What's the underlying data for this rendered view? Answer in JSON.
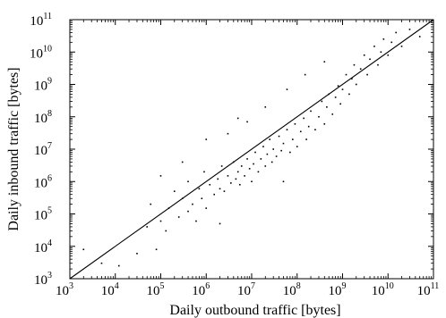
{
  "chart_data": {
    "type": "scatter",
    "title": "",
    "xlabel": "Daily outbound traffic [bytes]",
    "ylabel": "Daily inbound traffic [bytes]",
    "xscale": "log",
    "yscale": "log",
    "xlim": [
      1000,
      100000000000
    ],
    "ylim": [
      1000,
      100000000000
    ],
    "x_ticks": [
      {
        "base": "10",
        "exp": "3"
      },
      {
        "base": "10",
        "exp": "4"
      },
      {
        "base": "10",
        "exp": "5"
      },
      {
        "base": "10",
        "exp": "6"
      },
      {
        "base": "10",
        "exp": "7"
      },
      {
        "base": "10",
        "exp": "8"
      },
      {
        "base": "10",
        "exp": "9"
      },
      {
        "base": "10",
        "exp": "10"
      },
      {
        "base": "10",
        "exp": "11"
      }
    ],
    "y_ticks": [
      {
        "base": "10",
        "exp": "3"
      },
      {
        "base": "10",
        "exp": "4"
      },
      {
        "base": "10",
        "exp": "5"
      },
      {
        "base": "10",
        "exp": "6"
      },
      {
        "base": "10",
        "exp": "7"
      },
      {
        "base": "10",
        "exp": "8"
      },
      {
        "base": "10",
        "exp": "9"
      },
      {
        "base": "10",
        "exp": "10"
      },
      {
        "base": "10",
        "exp": "11"
      }
    ],
    "grid": false,
    "reference_line": {
      "type": "y=x",
      "from": 1000,
      "to": 100000000000
    },
    "series": [
      {
        "marker_color": "#000000",
        "points": [
          [
            2000,
            8000
          ],
          [
            5000,
            3000
          ],
          [
            12000,
            2500
          ],
          [
            30000,
            6000
          ],
          [
            50000,
            40000
          ],
          [
            60000,
            200000
          ],
          [
            80000,
            8000
          ],
          [
            100000,
            60000
          ],
          [
            130000,
            30000
          ],
          [
            150000,
            150000
          ],
          [
            200000,
            500000
          ],
          [
            250000,
            80000
          ],
          [
            300000,
            300000
          ],
          [
            400000,
            1000000
          ],
          [
            400000,
            120000
          ],
          [
            500000,
            200000
          ],
          [
            600000,
            60000
          ],
          [
            700000,
            600000
          ],
          [
            800000,
            300000
          ],
          [
            900000,
            2000000
          ],
          [
            1000000,
            150000
          ],
          [
            1200000,
            800000
          ],
          [
            1500000,
            400000
          ],
          [
            1800000,
            1200000
          ],
          [
            2000000,
            600000
          ],
          [
            2200000,
            3000000
          ],
          [
            2500000,
            500000
          ],
          [
            3000000,
            1500000
          ],
          [
            3500000,
            900000
          ],
          [
            4000000,
            4000000
          ],
          [
            4500000,
            1200000
          ],
          [
            5000000,
            2000000
          ],
          [
            5500000,
            800000
          ],
          [
            6000000,
            3000000
          ],
          [
            7000000,
            1500000
          ],
          [
            8000000,
            5000000
          ],
          [
            9000000,
            2500000
          ],
          [
            10000000,
            1000000
          ],
          [
            11000000,
            3500000
          ],
          [
            12000000,
            8000000
          ],
          [
            14000000,
            2000000
          ],
          [
            16000000,
            5000000
          ],
          [
            18000000,
            12000000
          ],
          [
            20000000,
            3000000
          ],
          [
            22000000,
            7000000
          ],
          [
            25000000,
            20000000
          ],
          [
            28000000,
            4000000
          ],
          [
            30000000,
            10000000
          ],
          [
            35000000,
            6000000
          ],
          [
            40000000,
            25000000
          ],
          [
            45000000,
            9000000
          ],
          [
            50000000,
            15000000
          ],
          [
            60000000,
            40000000
          ],
          [
            70000000,
            8000000
          ],
          [
            80000000,
            20000000
          ],
          [
            90000000,
            60000000
          ],
          [
            100000000,
            12000000
          ],
          [
            120000000,
            35000000
          ],
          [
            140000000,
            90000000
          ],
          [
            160000000,
            20000000
          ],
          [
            180000000,
            50000000
          ],
          [
            200000000,
            150000000
          ],
          [
            250000000,
            40000000
          ],
          [
            300000000,
            100000000
          ],
          [
            350000000,
            300000000
          ],
          [
            400000000,
            60000000
          ],
          [
            450000000,
            200000000
          ],
          [
            500000000,
            500000000
          ],
          [
            600000000,
            120000000
          ],
          [
            700000000,
            400000000
          ],
          [
            800000000,
            900000000
          ],
          [
            900000000,
            250000000
          ],
          [
            1000000000,
            700000000
          ],
          [
            1200000000,
            2000000000
          ],
          [
            1400000000,
            500000000
          ],
          [
            1600000000,
            1500000000
          ],
          [
            1800000000,
            4000000000
          ],
          [
            2000000000,
            1000000000
          ],
          [
            2500000000,
            3000000000
          ],
          [
            3000000000,
            8000000000
          ],
          [
            3500000000,
            2000000000
          ],
          [
            4000000000,
            6000000000
          ],
          [
            5000000000,
            15000000000
          ],
          [
            6000000000,
            4000000000
          ],
          [
            7000000000,
            10000000000
          ],
          [
            8000000000,
            25000000000
          ],
          [
            10000000000,
            8000000000
          ],
          [
            12000000000,
            20000000000
          ],
          [
            15000000000,
            40000000000
          ],
          [
            20000000000,
            15000000000
          ],
          [
            30000000000,
            50000000000
          ],
          [
            50000000000,
            30000000000
          ],
          [
            3000000,
            30000000
          ],
          [
            8000000,
            70000000
          ],
          [
            20000000,
            200000000
          ],
          [
            60000000,
            700000000
          ],
          [
            150000000,
            2000000000
          ],
          [
            400000000,
            5000000000
          ],
          [
            1000000,
            20000000
          ],
          [
            5000000,
            90000000
          ],
          [
            300000,
            4000000
          ],
          [
            100000,
            1500000
          ],
          [
            2000000,
            50000
          ],
          [
            50000000,
            1000000
          ]
        ]
      }
    ]
  }
}
